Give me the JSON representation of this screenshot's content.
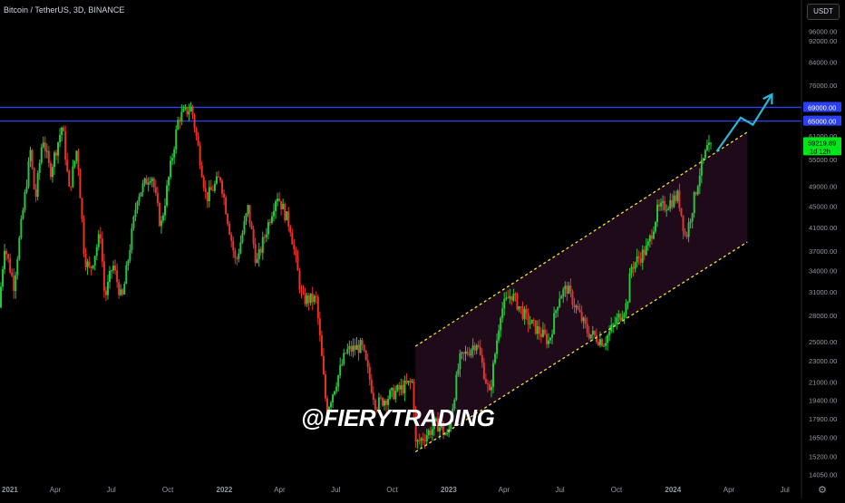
{
  "header": {
    "title": "Bitcoin / TetherUS, 3D, BINANCE",
    "currency": "USDT"
  },
  "watermark": "@FIERYTRADING",
  "colors": {
    "up": "#22c93b",
    "down": "#e8322c",
    "resistance": "#2b3ff5",
    "channel": "#f4e23c",
    "arrow": "#28b8d6",
    "current_price_bg": "#00e61a"
  },
  "chart_data": {
    "type": "candlestick",
    "title": "Bitcoin / TetherUS, 3D, BINANCE",
    "y_scale": "log",
    "ylim": [
      13700,
      100000
    ],
    "grid": false,
    "y_ticks": [
      "96000.00",
      "92000.00",
      "84000.00",
      "76000.00",
      "69000.00",
      "65000.00",
      "61000.00",
      "55000.00",
      "49000.00",
      "45000.00",
      "41000.00",
      "37000.00",
      "34000.00",
      "31000.00",
      "28000.00",
      "25000.00",
      "23000.00",
      "21000.00",
      "19400.00",
      "17900.00",
      "16500.00",
      "15200.00",
      "14050.00"
    ],
    "x_ticks": [
      "2021",
      "Apr",
      "Jul",
      "Oct",
      "2022",
      "Apr",
      "Jul",
      "Oct",
      "2023",
      "Apr",
      "Jul",
      "Oct",
      "2024",
      "Apr",
      "Jul"
    ],
    "resistance_levels": [
      {
        "value": 69000,
        "label": "69000.00"
      },
      {
        "value": 65000,
        "label": "65000.00"
      }
    ],
    "current_price": {
      "value": 59219.89,
      "label": "59219.89",
      "countdown": "1d 12h"
    },
    "channel": {
      "upper": {
        "start": [
          "2022-11-08",
          24500
        ],
        "end": [
          "2024-05-01",
          62000
        ]
      },
      "lower": {
        "start": [
          "2022-11-08",
          15500
        ],
        "end": [
          "2024-05-01",
          38500
        ]
      }
    },
    "projection_arrow": [
      [
        "2024-03-12",
        57000
      ],
      [
        "2024-04-20",
        66000
      ],
      [
        "2024-05-10",
        64000
      ],
      [
        "2024-06-10",
        73000
      ]
    ],
    "price_path": [
      [
        "2021-01-01",
        29000
      ],
      [
        "2021-01-10",
        38000
      ],
      [
        "2021-01-25",
        32000
      ],
      [
        "2021-02-21",
        57000
      ],
      [
        "2021-03-01",
        46000
      ],
      [
        "2021-03-13",
        61000
      ],
      [
        "2021-03-25",
        52000
      ],
      [
        "2021-04-14",
        64000
      ],
      [
        "2021-04-25",
        48000
      ],
      [
        "2021-05-08",
        58000
      ],
      [
        "2021-05-20",
        36000
      ],
      [
        "2021-05-29",
        34000
      ],
      [
        "2021-06-15",
        40000
      ],
      [
        "2021-06-22",
        30000
      ],
      [
        "2021-07-05",
        35000
      ],
      [
        "2021-07-20",
        29800
      ],
      [
        "2021-08-14",
        47000
      ],
      [
        "2021-09-06",
        52000
      ],
      [
        "2021-09-21",
        41000
      ],
      [
        "2021-10-20",
        66000
      ],
      [
        "2021-11-10",
        69000
      ],
      [
        "2021-11-26",
        53500
      ],
      [
        "2021-12-04",
        46500
      ],
      [
        "2021-12-27",
        51000
      ],
      [
        "2022-01-21",
        35000
      ],
      [
        "2022-02-10",
        44500
      ],
      [
        "2022-02-24",
        35000
      ],
      [
        "2022-03-29",
        47500
      ],
      [
        "2022-04-20",
        41000
      ],
      [
        "2022-05-09",
        30000
      ],
      [
        "2022-06-01",
        30000
      ],
      [
        "2022-06-18",
        18500
      ],
      [
        "2022-07-20",
        24000
      ],
      [
        "2022-08-14",
        24500
      ],
      [
        "2022-09-06",
        19000
      ],
      [
        "2022-10-05",
        20000
      ],
      [
        "2022-11-05",
        21000
      ],
      [
        "2022-11-10",
        16000
      ],
      [
        "2022-12-15",
        17500
      ],
      [
        "2023-01-01",
        16500
      ],
      [
        "2023-01-20",
        23000
      ],
      [
        "2023-02-17",
        25000
      ],
      [
        "2023-03-10",
        19800
      ],
      [
        "2023-03-28",
        28500
      ],
      [
        "2023-04-14",
        30800
      ],
      [
        "2023-05-10",
        27500
      ],
      [
        "2023-06-15",
        25000
      ],
      [
        "2023-07-01",
        30500
      ],
      [
        "2023-07-14",
        31500
      ],
      [
        "2023-08-17",
        26000
      ],
      [
        "2023-09-12",
        25000
      ],
      [
        "2023-10-20",
        29500
      ],
      [
        "2023-10-26",
        34500
      ],
      [
        "2023-11-22",
        37500
      ],
      [
        "2023-12-08",
        44000
      ],
      [
        "2024-01-11",
        47000
      ],
      [
        "2024-01-23",
        39000
      ],
      [
        "2024-02-15",
        52000
      ],
      [
        "2024-03-01",
        59219.89
      ]
    ]
  }
}
